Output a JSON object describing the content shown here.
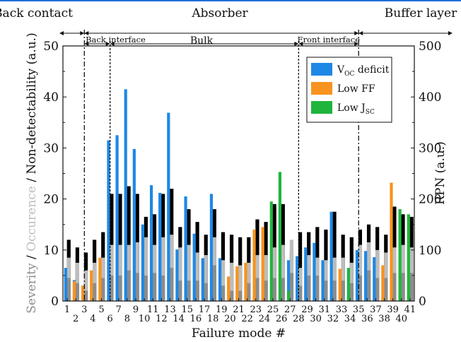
{
  "chart_data": {
    "type": "bar",
    "xlabel": "Failure mode #",
    "ylabel_parts": [
      "Severity",
      " / ",
      "Occurence",
      " / Non-detectability (a.u.)"
    ],
    "ylabel_colors": [
      "#8c8c8c",
      "#111111",
      "#bdbdbd",
      "#111111"
    ],
    "y2label": "RPN (a.u.)",
    "ylim": [
      0,
      50
    ],
    "y2lim": [
      0,
      500
    ],
    "yticks": [
      0,
      10,
      20,
      30,
      40,
      50
    ],
    "y2ticks": [
      0,
      100,
      200,
      300,
      400,
      500
    ],
    "categories": [
      "1",
      "2",
      "3",
      "4",
      "5",
      "6",
      "7",
      "8",
      "9",
      "10",
      "11",
      "12",
      "13",
      "14",
      "15",
      "16",
      "17",
      "18",
      "19",
      "20",
      "21",
      "22",
      "23",
      "24",
      "25",
      "26",
      "27",
      "28",
      "29",
      "30",
      "31",
      "32",
      "33",
      "34",
      "35",
      "36",
      "37",
      "38",
      "39",
      "40",
      "41"
    ],
    "severity": [
      4.5,
      3.5,
      2.0,
      3.5,
      4.5,
      5.0,
      5.0,
      6.0,
      5.5,
      5.0,
      5.5,
      5.0,
      6.5,
      4.0,
      4.0,
      4.0,
      3.5,
      7.0,
      3.0,
      2.0,
      2.0,
      3.5,
      4.5,
      4.0,
      4.5,
      4.5,
      5.5,
      3.0,
      5.0,
      5.0,
      4.0,
      4.0,
      4.0,
      3.5,
      5.0,
      6.0,
      4.5,
      4.5,
      5.5,
      5.5,
      5.5
    ],
    "occurrence": [
      8.5,
      7.5,
      6.0,
      7.5,
      8.5,
      11.0,
      11.0,
      11.0,
      11.5,
      12.5,
      11.0,
      12.5,
      13.0,
      10.5,
      11.0,
      9.5,
      9.0,
      12.5,
      8.0,
      7.5,
      7.0,
      7.5,
      9.0,
      9.0,
      10.5,
      11.0,
      12.0,
      6.5,
      9.0,
      8.5,
      8.0,
      8.5,
      8.5,
      7.5,
      11.0,
      11.5,
      10.0,
      9.5,
      10.5,
      11.0,
      10.5
    ],
    "non_detectability": [
      12.0,
      10.5,
      9.5,
      12.0,
      13.5,
      21.0,
      21.0,
      22.5,
      21.0,
      16.5,
      17.0,
      21.0,
      22.0,
      14.5,
      18.0,
      15.5,
      13.0,
      18.0,
      13.5,
      13.0,
      12.5,
      12.5,
      16.0,
      15.5,
      19.0,
      19.0,
      9.5,
      13.5,
      13.5,
      14.5,
      14.0,
      17.5,
      13.0,
      12.5,
      14.0,
      15.0,
      14.5,
      13.0,
      18.5,
      17.0,
      16.5
    ],
    "rpn_series": [
      {
        "name": "V",
        "subscript": "OC",
        "suffix": " deficit",
        "color": "#1e88e5",
        "values": {
          "1": 65,
          "2": 41,
          "3": 30,
          "6": 315,
          "7": 325,
          "8": 415,
          "9": 298,
          "10": 150,
          "11": 227,
          "12": 212,
          "13": 369,
          "14": 101,
          "15": 205,
          "16": 132,
          "17": 84,
          "18": 210,
          "19": 84,
          "27": 80,
          "28": 88,
          "29": 105,
          "30": 114,
          "31": 80,
          "32": 175,
          "34": 58,
          "35": 100,
          "36": 98,
          "37": 86
        }
      },
      {
        "name": "Low FF",
        "subscript": "",
        "suffix": "",
        "color": "#f7931e",
        "values": {
          "2": 39,
          "3": 30,
          "4": 60,
          "5": 85,
          "20": 48,
          "21": 68,
          "22": 75,
          "23": 140,
          "24": 145,
          "33": 63,
          "38": 70,
          "39": 232
        }
      },
      {
        "name": "Low J",
        "subscript": "SC",
        "suffix": "",
        "color": "#1fb53c",
        "values": {
          "25": 195,
          "26": 253,
          "27": 20,
          "34": 65,
          "40": 180,
          "41": 170
        }
      }
    ],
    "regions": {
      "back_contact": "Back contact",
      "absorber": "Absorber",
      "buffer_layer": "Buffer layer",
      "back_interface": "Back interface",
      "bulk": "Bulk",
      "front_interface": "Front interface"
    },
    "boundaries": {
      "contact_absorber": 2.5,
      "back_interface_bulk": 5.5,
      "bulk_front_interface": 27.5,
      "absorber_buffer": 34.5
    },
    "legend_position": "top-right",
    "grid": false
  }
}
